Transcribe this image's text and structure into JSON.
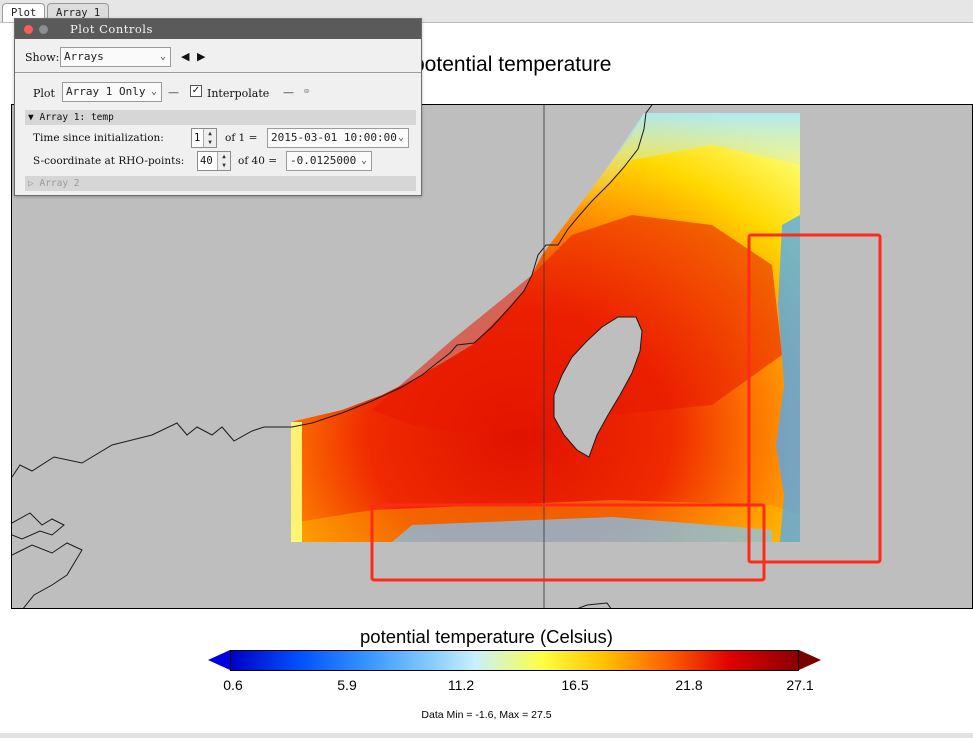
{
  "tabs": [
    {
      "label": "Plot"
    },
    {
      "label": "Array 1"
    }
  ],
  "plot": {
    "title": "potential temperature",
    "colorbar": {
      "label": "potential temperature (Celsius)",
      "ticks": [
        "0.6",
        "5.9",
        "11.2",
        "16.5",
        "21.8",
        "27.1"
      ],
      "min_max_text": "Data Min = -1.6, Max = 27.5",
      "colors": {
        "low_extend": "#0000e0",
        "high_extend": "#7a0000"
      }
    },
    "map": {
      "land_color": "#bebebe",
      "highlight_box_color": "#ff2a1a"
    }
  },
  "controls": {
    "window_title": "Plot Controls",
    "show_label": "Show:",
    "show_value": "Arrays",
    "plot_label": "Plot",
    "plot_value": "Array 1 Only",
    "interpolate_label": "Interpolate",
    "interpolate_checked": true,
    "array1_header": "Array 1: temp",
    "time_label": "Time since initialization:",
    "time_index": "1",
    "time_of": "of 1 =",
    "time_value": "2015-03-01 10:00:00",
    "s_label": "S-coordinate at RHO-points:",
    "s_index": "40",
    "s_of": "of 40 =",
    "s_value": "-0.0125000",
    "array2_header": "Array 2"
  }
}
